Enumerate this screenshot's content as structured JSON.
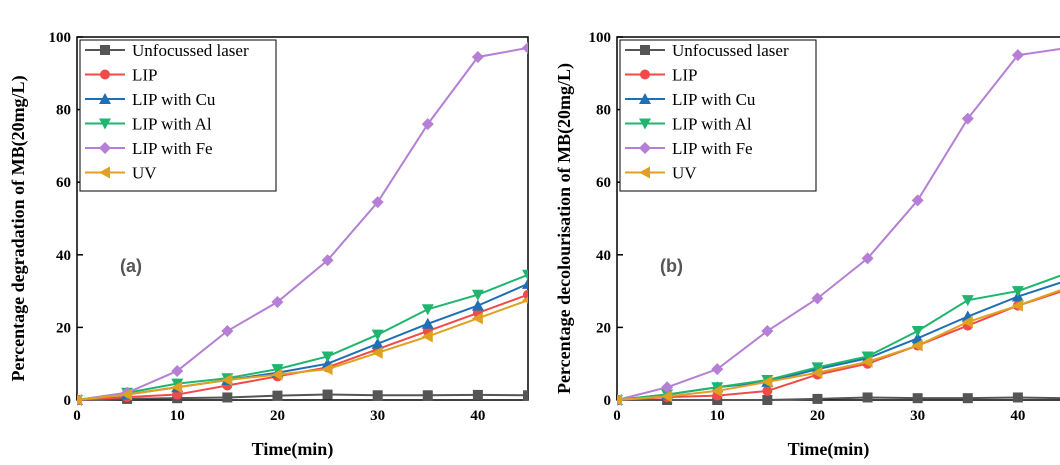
{
  "chart_data": [
    {
      "type": "line",
      "panel_label": "(a)",
      "xlabel": "Time(min)",
      "ylabel": "Percentage degradation of MB(20mg/L)",
      "xlim": [
        0,
        45
      ],
      "ylim": [
        0,
        100
      ],
      "xticks": [
        0,
        10,
        20,
        30,
        40
      ],
      "yticks": [
        0,
        20,
        40,
        60,
        80,
        100
      ],
      "grid": false,
      "legend_position": "top-left",
      "series": [
        {
          "name": "Unfocussed laser",
          "color": "#555555",
          "marker": "square",
          "x": [
            0,
            5,
            10,
            15,
            20,
            25,
            30,
            35,
            40,
            45
          ],
          "y": [
            0,
            0.3,
            0.5,
            0.7,
            1.2,
            1.5,
            1.3,
            1.3,
            1.4,
            1.3
          ]
        },
        {
          "name": "LIP",
          "color": "#f04a4a",
          "marker": "circle",
          "x": [
            0,
            5,
            10,
            15,
            20,
            25,
            30,
            35,
            40,
            45
          ],
          "y": [
            0,
            0.8,
            1.5,
            4,
            6.5,
            9,
            14,
            19,
            24,
            29
          ]
        },
        {
          "name": "LIP with Cu",
          "color": "#1f6fb5",
          "marker": "triangle-up",
          "x": [
            0,
            5,
            10,
            15,
            20,
            25,
            30,
            35,
            40,
            45
          ],
          "y": [
            0,
            1.5,
            3.5,
            5.5,
            7.5,
            10,
            15.5,
            21,
            26,
            32
          ]
        },
        {
          "name": "LIP with Al",
          "color": "#1fb56f",
          "marker": "triangle-down",
          "x": [
            0,
            5,
            10,
            15,
            20,
            25,
            30,
            35,
            40,
            45
          ],
          "y": [
            0,
            2,
            4.5,
            6,
            8.5,
            12,
            18,
            25,
            29,
            34.5
          ]
        },
        {
          "name": "LIP with Fe",
          "color": "#b57fd6",
          "marker": "diamond",
          "x": [
            0,
            5,
            10,
            15,
            20,
            25,
            30,
            35,
            40,
            45
          ],
          "y": [
            0,
            2,
            8,
            19,
            27,
            38.5,
            54.5,
            76,
            94.5,
            97
          ]
        },
        {
          "name": "UV",
          "color": "#e0a020",
          "marker": "triangle-left",
          "x": [
            0,
            5,
            10,
            15,
            20,
            25,
            30,
            35,
            40,
            45
          ],
          "y": [
            0,
            1.5,
            3.5,
            5.5,
            7,
            8.5,
            13,
            17.5,
            22.5,
            27.5
          ]
        }
      ]
    },
    {
      "type": "line",
      "panel_label": "(b)",
      "xlabel": "Time(min)",
      "ylabel": "Percentage decolourisation of MB(20mg/L)",
      "xlim": [
        0,
        45
      ],
      "ylim": [
        0,
        100
      ],
      "xticks": [
        0,
        10,
        20,
        30,
        40
      ],
      "yticks": [
        0,
        20,
        40,
        60,
        80,
        100
      ],
      "grid": false,
      "legend_position": "top-left",
      "series": [
        {
          "name": "Unfocussed laser",
          "color": "#555555",
          "marker": "square",
          "x": [
            0,
            5,
            10,
            15,
            20,
            25,
            30,
            35,
            40,
            45
          ],
          "y": [
            0,
            0,
            0,
            0,
            0.3,
            0.7,
            0.5,
            0.5,
            0.7,
            0.5
          ]
        },
        {
          "name": "LIP",
          "color": "#f04a4a",
          "marker": "circle",
          "x": [
            0,
            5,
            10,
            15,
            20,
            25,
            30,
            35,
            40,
            45
          ],
          "y": [
            0,
            0.8,
            1.2,
            2.5,
            7,
            10,
            15,
            20.5,
            26,
            30.5
          ]
        },
        {
          "name": "LIP with Cu",
          "color": "#1f6fb5",
          "marker": "triangle-up",
          "x": [
            0,
            5,
            10,
            15,
            20,
            25,
            30,
            35,
            40,
            45
          ],
          "y": [
            0,
            1.5,
            3.5,
            5,
            8.5,
            11.5,
            17,
            23,
            28.5,
            33
          ]
        },
        {
          "name": "LIP with Al",
          "color": "#1fb56f",
          "marker": "triangle-down",
          "x": [
            0,
            5,
            10,
            15,
            20,
            25,
            30,
            35,
            40,
            45
          ],
          "y": [
            0,
            1.5,
            3.5,
            5.5,
            9,
            12,
            19,
            27.5,
            30,
            35
          ]
        },
        {
          "name": "LIP with Fe",
          "color": "#b57fd6",
          "marker": "diamond",
          "x": [
            0,
            5,
            10,
            15,
            20,
            25,
            30,
            35,
            40,
            45
          ],
          "y": [
            0,
            3.5,
            8.5,
            19,
            28,
            39,
            55,
            77.5,
            95,
            97
          ]
        },
        {
          "name": "UV",
          "color": "#e0a020",
          "marker": "triangle-left",
          "x": [
            0,
            5,
            10,
            15,
            20,
            25,
            30,
            35,
            40,
            45
          ],
          "y": [
            0,
            1,
            2.5,
            5,
            7.5,
            10.5,
            15,
            21.5,
            26,
            31
          ]
        }
      ]
    }
  ]
}
